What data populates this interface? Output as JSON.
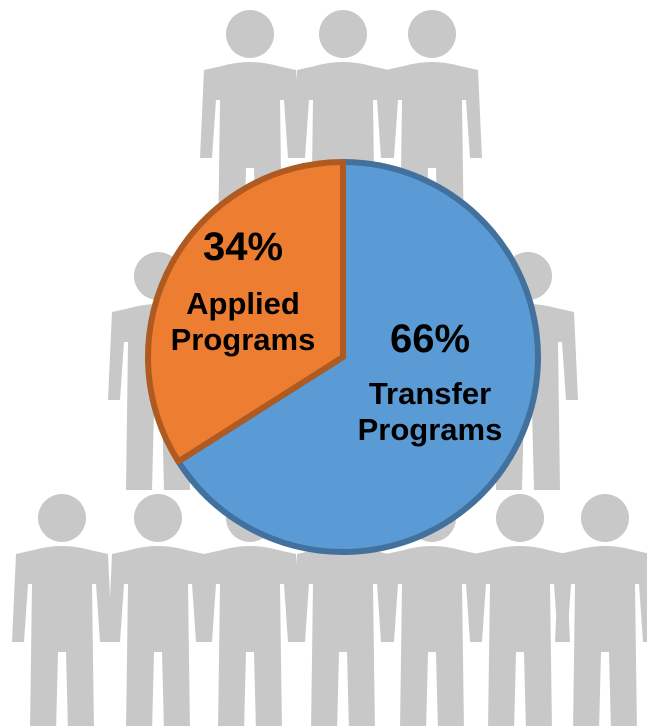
{
  "chart_data": {
    "type": "pie",
    "categories": [
      "Transfer Programs",
      "Applied Programs"
    ],
    "values": [
      66,
      34
    ],
    "value_labels": [
      "66%",
      "34%"
    ],
    "colors": [
      "#5b9bd5",
      "#ed7d31"
    ]
  }
}
